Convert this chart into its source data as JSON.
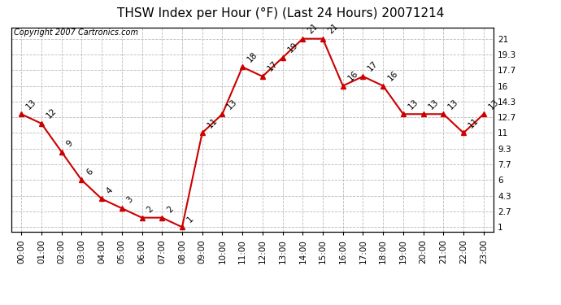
{
  "title": "THSW Index per Hour (°F) (Last 24 Hours) 20071214",
  "copyright": "Copyright 2007 Cartronics.com",
  "hours": [
    "00:00",
    "01:00",
    "02:00",
    "03:00",
    "04:00",
    "05:00",
    "06:00",
    "07:00",
    "08:00",
    "09:00",
    "10:00",
    "11:00",
    "12:00",
    "13:00",
    "14:00",
    "15:00",
    "16:00",
    "17:00",
    "18:00",
    "19:00",
    "20:00",
    "21:00",
    "22:00",
    "23:00"
  ],
  "values": [
    13,
    12,
    9,
    6,
    4,
    3,
    2,
    2,
    1,
    11,
    13,
    18,
    17,
    19,
    21,
    21,
    16,
    17,
    16,
    13,
    13,
    13,
    11,
    13
  ],
  "yticks": [
    1.0,
    2.7,
    4.3,
    6.0,
    7.7,
    9.3,
    11.0,
    12.7,
    14.3,
    16.0,
    17.7,
    19.3,
    21.0
  ],
  "ylim": [
    0.5,
    22.2
  ],
  "line_color": "#cc0000",
  "marker_color": "#cc0000",
  "bg_color": "#ffffff",
  "grid_color": "#bbbbbb",
  "title_fontsize": 11,
  "copyright_fontsize": 7,
  "label_fontsize": 7.5,
  "tick_fontsize": 7.5
}
